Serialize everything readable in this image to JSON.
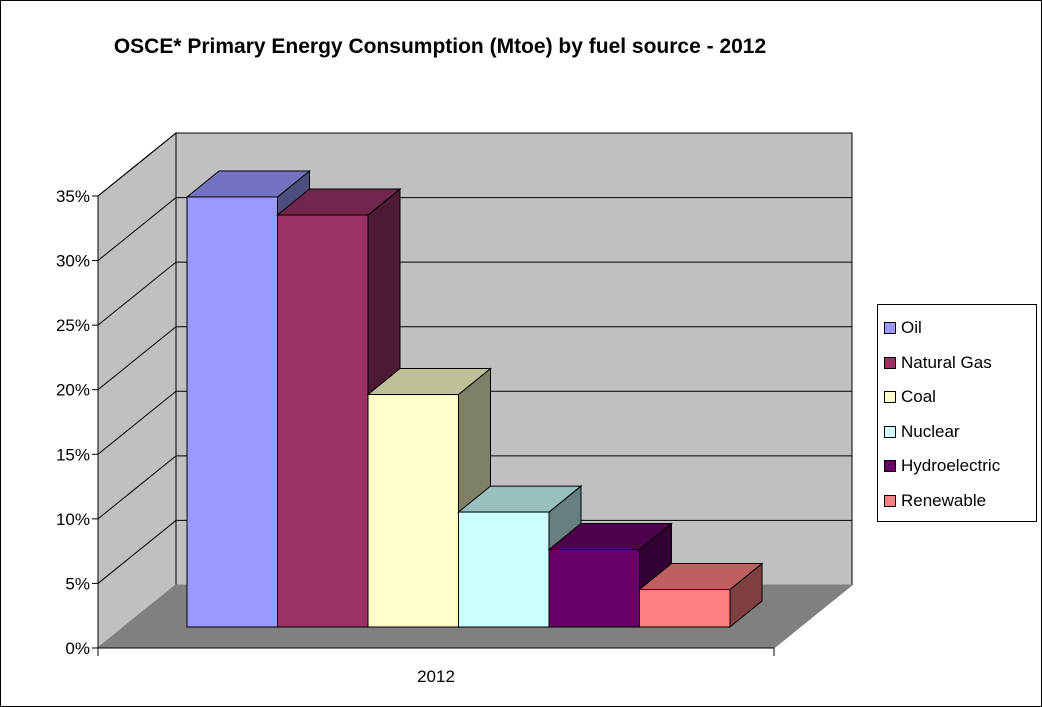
{
  "chart_data": {
    "type": "bar",
    "title": "OSCE* Primary Energy Consumption (Mtoe) by fuel source - 2012",
    "categories": [
      "2012"
    ],
    "series": [
      {
        "name": "Oil",
        "values": [
          33.3
        ],
        "color": "#9999ff"
      },
      {
        "name": "Natural Gas",
        "values": [
          31.9
        ],
        "color": "#993366"
      },
      {
        "name": "Coal",
        "values": [
          18.0
        ],
        "color": "#ffffcc"
      },
      {
        "name": "Nuclear",
        "values": [
          8.9
        ],
        "color": "#ccffff"
      },
      {
        "name": "Hydroelectric",
        "values": [
          6.0
        ],
        "color": "#660066"
      },
      {
        "name": "Renewable",
        "values": [
          2.9
        ],
        "color": "#ff8080"
      }
    ],
    "y_ticks": [
      "0%",
      "5%",
      "10%",
      "15%",
      "20%",
      "25%",
      "30%",
      "35%"
    ],
    "ylim": [
      0,
      35
    ],
    "xlabel": "",
    "ylabel": "",
    "grid": true,
    "legend_position": "right",
    "colors": {
      "wall": "#c0c0c0",
      "floor": "#808080"
    }
  }
}
